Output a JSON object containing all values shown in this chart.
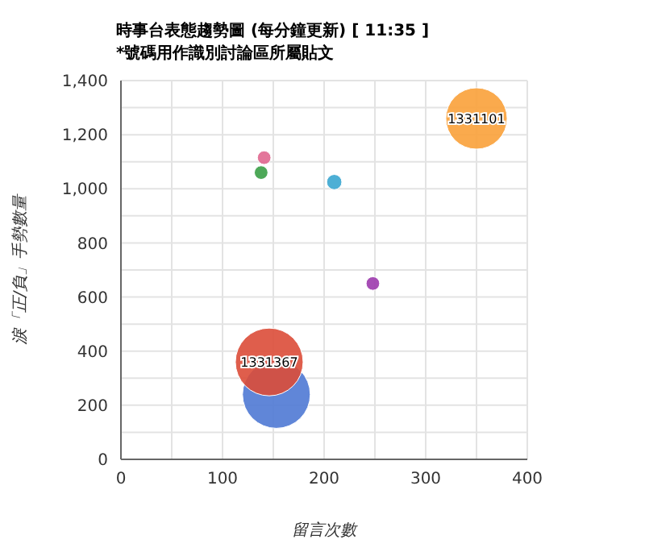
{
  "chart_data": {
    "type": "bubble",
    "title": "時事台表態趨勢圖 (每分鐘更新) [ 11:35 ]",
    "subtitle": "*號碼用作識別討論區所屬貼文",
    "xlabel": "留言次數",
    "ylabel": "淚「正/負」手勢數量",
    "x": [
      350,
      141,
      138,
      210,
      248,
      153,
      146
    ],
    "values": [
      1260,
      1115,
      1060,
      1025,
      650,
      240,
      360
    ],
    "sizes": [
      0.82,
      0.04,
      0.04,
      0.05,
      0.04,
      1,
      1
    ],
    "colors": [
      "#f9a13a",
      "#e0678f",
      "#3a9f46",
      "#3aa6d0",
      "#9c3aad",
      "#4f79d4",
      "#dc4c38"
    ],
    "annotations": [
      {
        "text": "1331101",
        "x": 350,
        "y": 1260
      },
      {
        "text": "1331367",
        "x": 146,
        "y": 360
      }
    ],
    "xlim": [
      0,
      400
    ],
    "xticks": [
      0,
      {
        "value": 50,
        "label": null
      },
      100,
      {
        "value": 150,
        "label": null
      },
      200,
      {
        "value": 250,
        "label": null
      },
      300,
      {
        "value": 350,
        "label": null
      },
      400
    ],
    "ylim": [
      0,
      1400
    ],
    "yticks": [
      0,
      {
        "value": 100,
        "label": null
      },
      200,
      {
        "value": 300,
        "label": null
      },
      400,
      {
        "value": 500,
        "label": null
      },
      600,
      {
        "value": 700,
        "label": null
      },
      800,
      {
        "value": 900,
        "label": null
      },
      {
        "value": 1000,
        "label": "1,000"
      },
      {
        "value": 1100,
        "label": null
      },
      {
        "value": 1200,
        "label": "1,200"
      },
      {
        "value": 1300,
        "label": null
      },
      {
        "value": 1400,
        "label": "1,400"
      }
    ],
    "grid": true
  }
}
